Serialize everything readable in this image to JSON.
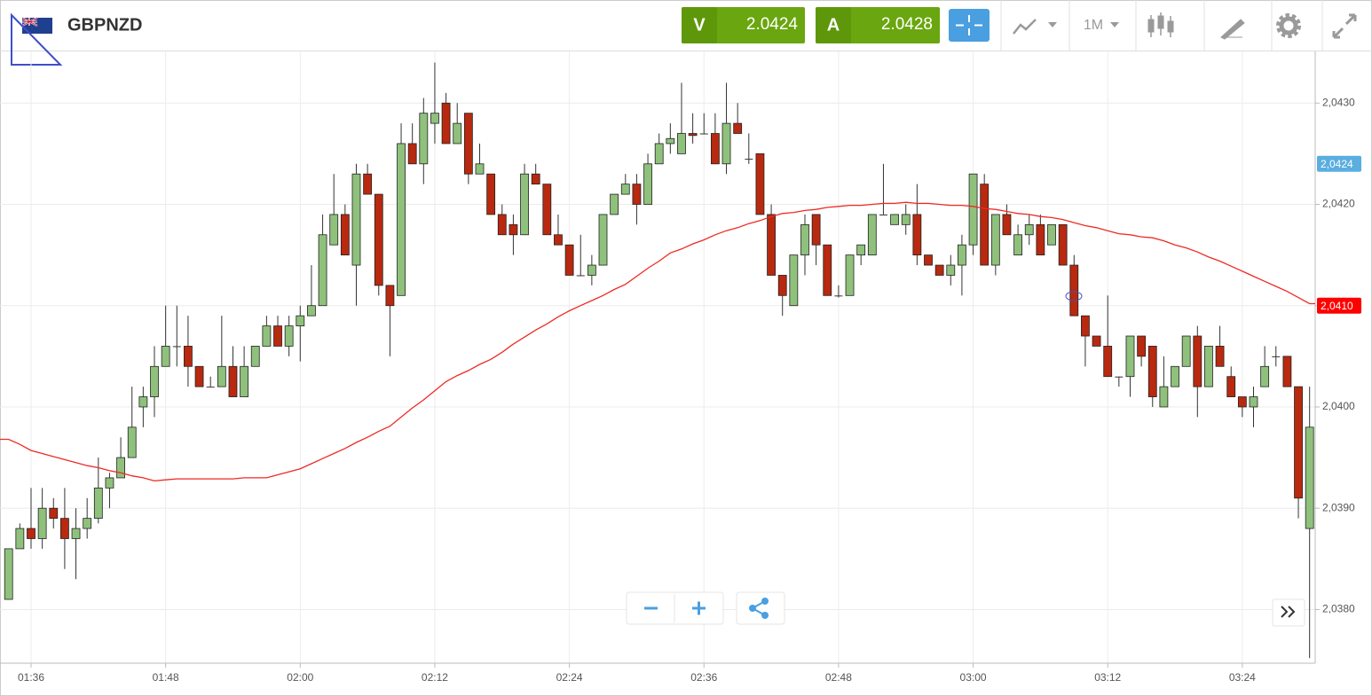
{
  "header": {
    "symbol": "GBPNZD",
    "sell": {
      "label": "V",
      "price": 2.0424
    },
    "buy": {
      "label": "A",
      "price": 2.0428
    },
    "timeframe": "1M"
  },
  "chart_data": {
    "type": "candlestick",
    "categories": [
      null,
      null,
      "01:36",
      null,
      null,
      null,
      null,
      null,
      null,
      null,
      null,
      null,
      null,
      null,
      "01:48",
      null,
      null,
      null,
      null,
      null,
      null,
      null,
      null,
      null,
      null,
      null,
      "02:00",
      null,
      null,
      null,
      null,
      null,
      null,
      null,
      null,
      null,
      null,
      null,
      "02:12",
      null,
      null,
      null,
      null,
      null,
      null,
      null,
      null,
      null,
      null,
      null,
      "02:24",
      null,
      null,
      null,
      null,
      null,
      null,
      null,
      null,
      null,
      null,
      null,
      "02:36",
      null,
      null,
      null,
      null,
      null,
      null,
      null,
      null,
      null,
      null,
      null,
      "02:48",
      null,
      null,
      null,
      null,
      null,
      null,
      null,
      null,
      null,
      null,
      null,
      "03:00",
      null,
      null,
      null,
      null,
      null,
      null,
      null,
      null,
      null,
      null,
      null,
      "03:12",
      null,
      null,
      null,
      null,
      null,
      null,
      null,
      null,
      null,
      null,
      null,
      "03:24",
      null,
      null,
      null,
      null,
      null,
      null
    ],
    "open": [
      2.0381,
      2.0386,
      2.0388,
      2.0387,
      2.039,
      2.0389,
      2.0387,
      2.0388,
      2.0389,
      2.0392,
      2.0393,
      2.0395,
      2.04,
      2.0401,
      2.0404,
      2.0406,
      2.0406,
      2.0404,
      2.0402,
      2.0402,
      2.0404,
      2.0401,
      2.0404,
      2.0406,
      2.0408,
      2.0406,
      2.0408,
      2.0409,
      2.041,
      2.0416,
      2.0419,
      2.0414,
      2.0423,
      2.0421,
      2.0412,
      2.0411,
      2.0426,
      2.0424,
      2.0428,
      2.043,
      2.0426,
      2.0429,
      2.0423,
      2.0423,
      2.0419,
      2.0418,
      2.0417,
      2.0423,
      2.0422,
      2.0417,
      2.0416,
      2.0413,
      2.0413,
      2.0414,
      2.0419,
      2.0421,
      2.0422,
      2.042,
      2.0424,
      2.0426,
      2.0425,
      2.0427,
      2.0427,
      2.0427,
      2.0424,
      2.0428,
      2.04245,
      2.0425,
      2.0419,
      2.0413,
      2.041,
      2.0415,
      2.0419,
      2.0416,
      2.0411,
      2.0411,
      2.0415,
      2.0415,
      2.0419,
      2.0418,
      2.0418,
      2.0419,
      2.0415,
      2.0414,
      2.0413,
      2.0414,
      2.0416,
      2.0422,
      2.0414,
      2.0419,
      2.0415,
      2.0417,
      2.0418,
      2.0416,
      2.0418,
      2.0414,
      2.0409,
      2.0407,
      2.0406,
      2.0403,
      2.0403,
      2.0407,
      2.0406,
      2.04,
      2.0402,
      2.0404,
      2.0407,
      2.0402,
      2.0406,
      2.0403,
      2.0401,
      2.04,
      2.0402,
      2.0405,
      2.0405,
      2.0402,
      2.0388
    ],
    "high": [
      2.0386,
      2.03885,
      2.0392,
      2.0392,
      2.0391,
      2.0392,
      2.039,
      2.0391,
      2.0395,
      2.03935,
      2.0397,
      2.0402,
      2.0402,
      2.0406,
      2.041,
      2.041,
      2.0409,
      2.0404,
      2.0403,
      2.0409,
      2.0406,
      2.0406,
      2.0406,
      2.0409,
      2.0409,
      2.0409,
      2.041,
      2.0414,
      2.0419,
      2.0423,
      2.042,
      2.0424,
      2.0424,
      2.0421,
      2.0412,
      2.0428,
      2.0428,
      2.04305,
      2.0434,
      2.0431,
      2.043,
      2.0429,
      2.0426,
      2.0423,
      2.042,
      2.0419,
      2.0424,
      2.0424,
      2.0422,
      2.0419,
      2.0416,
      2.0417,
      2.0415,
      2.0419,
      2.0421,
      2.0423,
      2.0423,
      2.0425,
      2.0427,
      2.0428,
      2.0432,
      2.0429,
      2.0429,
      2.0429,
      2.0432,
      2.043,
      2.0427,
      2.0425,
      2.042,
      2.0413,
      2.0415,
      2.0419,
      2.0419,
      2.0416,
      2.0412,
      2.0415,
      2.0416,
      2.0419,
      2.0424,
      2.0419,
      2.042,
      2.0422,
      2.0415,
      2.0414,
      2.0415,
      2.0417,
      2.0423,
      2.0423,
      2.0419,
      2.042,
      2.0418,
      2.0419,
      2.0419,
      2.0418,
      2.0418,
      2.0415,
      2.0409,
      2.0407,
      2.0411,
      2.0403,
      2.0407,
      2.0407,
      2.0406,
      2.0405,
      2.0404,
      2.0407,
      2.0408,
      2.0406,
      2.0408,
      2.0404,
      2.0401,
      2.0402,
      2.0406,
      2.0406,
      2.0405,
      2.0402,
      2.0402
    ],
    "low": [
      2.0381,
      2.0386,
      2.0386,
      2.0386,
      2.0388,
      2.0384,
      2.0383,
      2.0387,
      2.03885,
      2.039,
      2.0393,
      2.0395,
      2.0398,
      2.0399,
      2.0404,
      2.0404,
      2.0402,
      2.0402,
      2.0402,
      2.0402,
      2.0401,
      2.0401,
      2.0404,
      2.0406,
      2.0406,
      2.0405,
      2.04045,
      2.0409,
      2.041,
      2.0416,
      2.0415,
      2.041,
      2.0421,
      2.0411,
      2.0405,
      2.0411,
      2.0424,
      2.0422,
      2.0426,
      2.0426,
      2.0426,
      2.0422,
      2.0423,
      2.0419,
      2.0417,
      2.0415,
      2.0417,
      2.0422,
      2.0417,
      2.0416,
      2.0413,
      2.0413,
      2.0412,
      2.0414,
      2.0419,
      2.0421,
      2.0418,
      2.042,
      2.0424,
      2.0425,
      2.0425,
      2.0426,
      2.0427,
      2.0424,
      2.0423,
      2.0427,
      2.0424,
      2.0419,
      2.0413,
      2.0409,
      2.041,
      2.0413,
      2.0414,
      2.0411,
      2.04108,
      2.0411,
      2.0414,
      2.0415,
      2.0419,
      2.0418,
      2.0417,
      2.0414,
      2.0414,
      2.0413,
      2.0412,
      2.0411,
      2.0415,
      2.0414,
      2.0413,
      2.0417,
      2.0415,
      2.0416,
      2.0415,
      2.0416,
      2.0414,
      2.0409,
      2.0404,
      2.0406,
      2.0403,
      2.0402,
      2.0401,
      2.0404,
      2.04,
      2.04,
      2.0402,
      2.0404,
      2.0399,
      2.0402,
      2.0404,
      2.0401,
      2.0399,
      2.0398,
      2.0402,
      2.0404,
      2.0402,
      2.0389,
      2.03752
    ],
    "close": [
      2.0386,
      2.0388,
      2.0387,
      2.039,
      2.0389,
      2.0387,
      2.0388,
      2.0389,
      2.0392,
      2.0393,
      2.0395,
      2.0398,
      2.0401,
      2.0404,
      2.0406,
      2.0406,
      2.0404,
      2.0402,
      2.0402,
      2.0404,
      2.0401,
      2.0404,
      2.0406,
      2.0408,
      2.0406,
      2.0408,
      2.0409,
      2.041,
      2.0417,
      2.0419,
      2.0415,
      2.0423,
      2.0421,
      2.0412,
      2.041,
      2.0426,
      2.0424,
      2.0429,
      2.0429,
      2.0426,
      2.0428,
      2.0423,
      2.0424,
      2.0419,
      2.0417,
      2.0417,
      2.0423,
      2.0422,
      2.0417,
      2.0416,
      2.0413,
      2.0413,
      2.0414,
      2.0419,
      2.0421,
      2.0422,
      2.042,
      2.0424,
      2.0426,
      2.04265,
      2.0427,
      2.04268,
      2.0427,
      2.0424,
      2.0428,
      2.0427,
      2.04245,
      2.0419,
      2.0413,
      2.0411,
      2.0415,
      2.0418,
      2.0416,
      2.0411,
      2.0411,
      2.0415,
      2.0416,
      2.0419,
      2.0419,
      2.0419,
      2.0419,
      2.0415,
      2.0414,
      2.0413,
      2.0414,
      2.0416,
      2.0423,
      2.0414,
      2.0419,
      2.0417,
      2.0417,
      2.0418,
      2.0415,
      2.0418,
      2.0414,
      2.0409,
      2.0407,
      2.0406,
      2.0403,
      2.0403,
      2.0407,
      2.0405,
      2.0401,
      2.0402,
      2.0404,
      2.0407,
      2.0402,
      2.0406,
      2.0404,
      2.0401,
      2.04,
      2.0401,
      2.0404,
      2.0405,
      2.0402,
      2.0391,
      2.0398
    ],
    "up_color": "#8fc17c",
    "down_color": "#b8290f",
    "ma": {
      "color": "#ee2a24",
      "values": [
        2.03968,
        2.03963,
        2.03957,
        2.03954,
        2.03951,
        2.03948,
        2.03945,
        2.03942,
        2.0394,
        2.03937,
        2.03935,
        2.03932,
        2.0393,
        2.03927,
        2.03928,
        2.03929,
        2.03929,
        2.03929,
        2.03929,
        2.03929,
        2.03929,
        2.0393,
        2.0393,
        2.0393,
        2.03933,
        2.03936,
        2.03939,
        2.03944,
        2.03949,
        2.03954,
        2.03959,
        2.03965,
        2.0397,
        2.03976,
        2.03981,
        2.0399,
        2.03999,
        2.04007,
        2.04016,
        2.04025,
        2.04031,
        2.04036,
        2.04042,
        2.04047,
        2.04054,
        2.04062,
        2.04069,
        2.04076,
        2.04082,
        2.04089,
        2.04095,
        2.041,
        2.04105,
        2.0411,
        2.04116,
        2.04121,
        2.04129,
        2.04137,
        2.04144,
        2.04152,
        2.04156,
        2.04161,
        2.04165,
        2.0417,
        2.04174,
        2.04177,
        2.04181,
        2.04184,
        2.04188,
        2.04191,
        2.04192,
        2.04194,
        2.04195,
        2.04197,
        2.04198,
        2.04199,
        2.04199,
        2.042,
        2.04201,
        2.04201,
        2.04202,
        2.04201,
        2.04201,
        2.042,
        2.04199,
        2.04199,
        2.04198,
        2.04196,
        2.04195,
        2.04193,
        2.04191,
        2.0419,
        2.04188,
        2.04187,
        2.04185,
        2.04182,
        2.04179,
        2.04177,
        2.04174,
        2.04171,
        2.0417,
        2.04168,
        2.04167,
        2.04164,
        2.0416,
        2.04157,
        2.04153,
        2.04148,
        2.04144,
        2.04139,
        2.04134,
        2.04129,
        2.04124,
        2.04119,
        2.04114,
        2.04108,
        2.04102
      ]
    },
    "ylim": [
      2.03747,
      2.04351
    ],
    "yticks": [
      {
        "value": 2.038,
        "label": "2,0380"
      },
      {
        "value": 2.039,
        "label": "2,0390"
      },
      {
        "value": 2.04,
        "label": "2,0400"
      },
      {
        "value": 2.041,
        "label": "2,0410"
      },
      {
        "value": 2.042,
        "label": "2,0420"
      },
      {
        "value": 2.043,
        "label": "2,0430"
      }
    ],
    "grid": true,
    "price_markers": [
      {
        "value": 2.0424,
        "label": "2,0424",
        "color": "#5aaee0"
      },
      {
        "value": 2.041,
        "label": "2,0410",
        "color": "#ff0000"
      }
    ]
  }
}
